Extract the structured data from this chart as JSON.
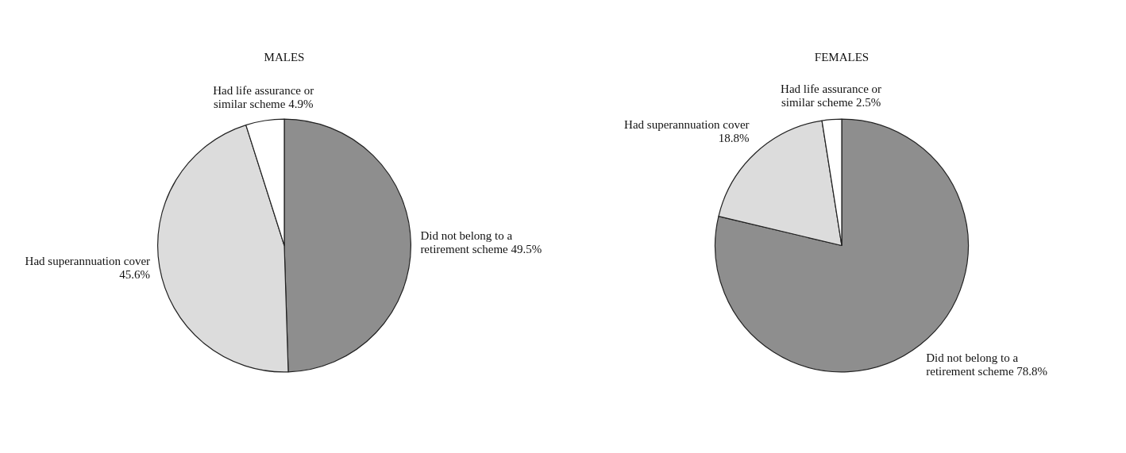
{
  "chart_data": [
    {
      "type": "pie",
      "title": "MALES",
      "categories": [
        "Did not belong to a retirement scheme",
        "Had superannuation cover",
        "Had life assurance or similar scheme"
      ],
      "values": [
        49.5,
        45.6,
        4.9
      ],
      "value_labels": [
        "49.5%",
        "45.6%",
        "4.9%"
      ],
      "colors": [
        "#8e8e8e",
        "#dcdcdc",
        "#ffffff"
      ],
      "legend": false
    },
    {
      "type": "pie",
      "title": "FEMALES",
      "categories": [
        "Did not belong to a retirement scheme",
        "Had superannuation cover",
        "Had life assurance or similar scheme"
      ],
      "values": [
        78.8,
        18.8,
        2.5
      ],
      "value_labels": [
        "78.8%",
        "18.8%",
        "2.5%"
      ],
      "colors": [
        "#8e8e8e",
        "#dcdcdc",
        "#ffffff"
      ],
      "legend": false
    }
  ]
}
